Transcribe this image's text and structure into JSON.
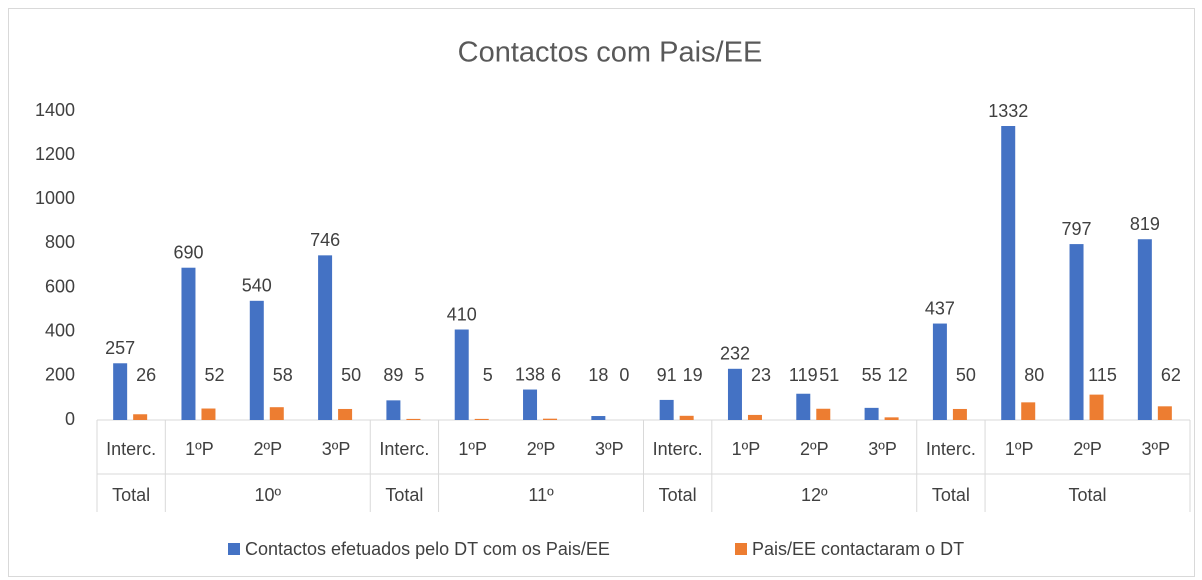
{
  "chart_data": {
    "type": "bar",
    "title": "Contactos com Pais/EE",
    "categories": [
      "Interc.",
      "1ºP",
      "2ºP",
      "3ºP",
      "Interc.",
      "1ºP",
      "2ºP",
      "3ºP",
      "Interc.",
      "1ºP",
      "2ºP",
      "3ºP",
      "Interc.",
      "1ºP",
      "2ºP",
      "3ºP"
    ],
    "groups": [
      {
        "label": "Total",
        "span": 1
      },
      {
        "label": "10º",
        "span": 3
      },
      {
        "label": "Total",
        "span": 1
      },
      {
        "label": "11º",
        "span": 3
      },
      {
        "label": "Total",
        "span": 1
      },
      {
        "label": "12º",
        "span": 3
      },
      {
        "label": "Total",
        "span": 1
      },
      {
        "label": "Total",
        "span": 3
      }
    ],
    "series": [
      {
        "name": "Contactos efetuados pelo DT com os Pais/EE",
        "color": "#4472c4",
        "values": [
          257,
          690,
          540,
          746,
          89,
          410,
          138,
          18,
          91,
          232,
          119,
          55,
          437,
          1332,
          797,
          819
        ]
      },
      {
        "name": "Pais/EE contactaram o DT",
        "color": "#ed7d31",
        "values": [
          26,
          52,
          58,
          50,
          5,
          5,
          6,
          0,
          19,
          23,
          51,
          12,
          50,
          80,
          115,
          62
        ]
      }
    ],
    "ylim": [
      0,
      1400
    ],
    "yticks": [
      0,
      200,
      400,
      600,
      800,
      1000,
      1200,
      1400
    ],
    "grid": false,
    "legend": "bottom"
  }
}
